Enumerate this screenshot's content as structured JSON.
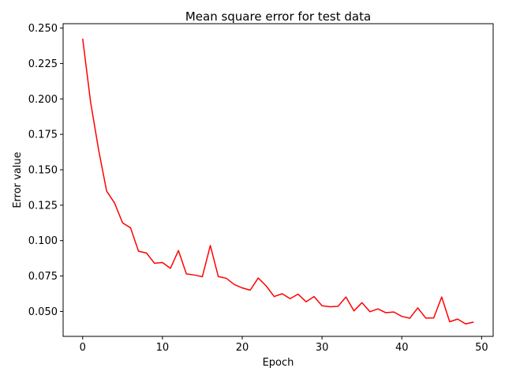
{
  "chart_data": {
    "type": "line",
    "title": "Mean square error for test data",
    "xlabel": "Epoch",
    "ylabel": "Error value",
    "xlim": [
      -2.45,
      51.45
    ],
    "ylim": [
      0.0324,
      0.2531
    ],
    "xticks": [
      0,
      10,
      20,
      30,
      40,
      50
    ],
    "xtick_labels": [
      "0",
      "10",
      "20",
      "30",
      "40",
      "50"
    ],
    "yticks": [
      0.05,
      0.075,
      0.1,
      0.125,
      0.15,
      0.175,
      0.2,
      0.225,
      0.25
    ],
    "ytick_labels": [
      "0.050",
      "0.075",
      "0.100",
      "0.125",
      "0.150",
      "0.175",
      "0.200",
      "0.225",
      "0.250"
    ],
    "grid": false,
    "series": [
      {
        "color": "#ff0000",
        "x": [
          0,
          1,
          2,
          3,
          4,
          5,
          6,
          7,
          8,
          9,
          10,
          11,
          12,
          13,
          14,
          15,
          16,
          17,
          18,
          19,
          20,
          21,
          22,
          23,
          24,
          25,
          26,
          27,
          28,
          29,
          30,
          31,
          32,
          33,
          34,
          35,
          36,
          37,
          38,
          39,
          40,
          41,
          42,
          43,
          44,
          45,
          46,
          47,
          48,
          49
        ],
        "values": [
          0.2425,
          0.1975,
          0.164,
          0.135,
          0.1265,
          0.1125,
          0.109,
          0.0925,
          0.0912,
          0.084,
          0.0845,
          0.0804,
          0.093,
          0.0765,
          0.0757,
          0.0745,
          0.0965,
          0.0746,
          0.0734,
          0.069,
          0.0666,
          0.065,
          0.0736,
          0.068,
          0.0605,
          0.0625,
          0.059,
          0.0622,
          0.0568,
          0.0605,
          0.054,
          0.0533,
          0.0536,
          0.0602,
          0.0504,
          0.0562,
          0.0498,
          0.0518,
          0.0491,
          0.0496,
          0.0465,
          0.0452,
          0.0525,
          0.0453,
          0.0454,
          0.0602,
          0.0427,
          0.0446,
          0.0412,
          0.0425
        ]
      }
    ]
  }
}
